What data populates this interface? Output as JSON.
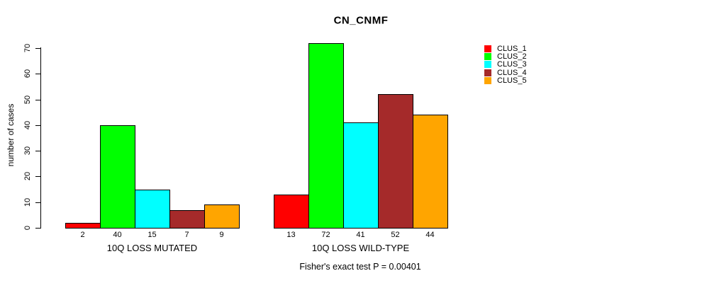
{
  "chart_data": {
    "type": "bar",
    "title": "CN_CNMF",
    "xlabel": "",
    "ylabel": "number of cases",
    "ylim": [
      0,
      70
    ],
    "yticks": [
      0,
      10,
      20,
      30,
      40,
      50,
      60,
      70
    ],
    "grid": false,
    "legend_position": "right",
    "bar_value_labels_shown": true,
    "categories": [
      "10Q LOSS MUTATED",
      "10Q LOSS WILD-TYPE"
    ],
    "series": [
      {
        "name": "CLUS_1",
        "color": "#FF0000",
        "values": [
          2,
          13
        ]
      },
      {
        "name": "CLUS_2",
        "color": "#00FF00",
        "values": [
          40,
          72
        ]
      },
      {
        "name": "CLUS_3",
        "color": "#00FFFF",
        "values": [
          15,
          41
        ]
      },
      {
        "name": "CLUS_4",
        "color": "#A52A2A",
        "values": [
          7,
          52
        ]
      },
      {
        "name": "CLUS_5",
        "color": "#FFA500",
        "values": [
          9,
          44
        ]
      }
    ],
    "annotation": "Fisher's exact test P = 0.00401"
  }
}
